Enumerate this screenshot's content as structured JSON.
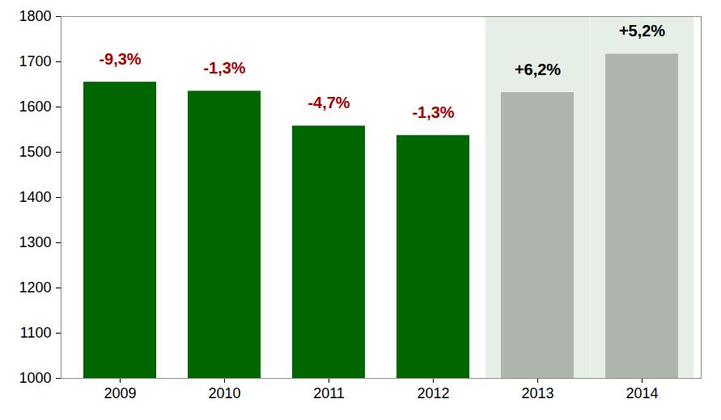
{
  "chart_data": {
    "type": "bar",
    "categories": [
      "2009",
      "2010",
      "2011",
      "2012",
      "2013",
      "2014"
    ],
    "values": [
      1655,
      1635,
      1558,
      1537,
      1632,
      1717
    ],
    "colors": [
      "#006600",
      "#006600",
      "#006600",
      "#006600",
      "#adb5ad",
      "#adb5ad"
    ],
    "ylim": [
      1000,
      1800
    ],
    "yticks": [
      1000,
      1100,
      1200,
      1300,
      1400,
      1500,
      1600,
      1700,
      1800
    ],
    "grid": false,
    "annotations": [
      {
        "category": "2009",
        "text": "-9,3%",
        "color": "#a50000"
      },
      {
        "category": "2010",
        "text": "-1,3%",
        "color": "#a50000"
      },
      {
        "category": "2011",
        "text": "-4,7%",
        "color": "#a50000"
      },
      {
        "category": "2012",
        "text": "-1,3%",
        "color": "#a50000"
      },
      {
        "category": "2013",
        "text": "+6,2%",
        "color": "#000000"
      },
      {
        "category": "2014",
        "text": "+5,2%",
        "color": "#000000"
      }
    ]
  }
}
